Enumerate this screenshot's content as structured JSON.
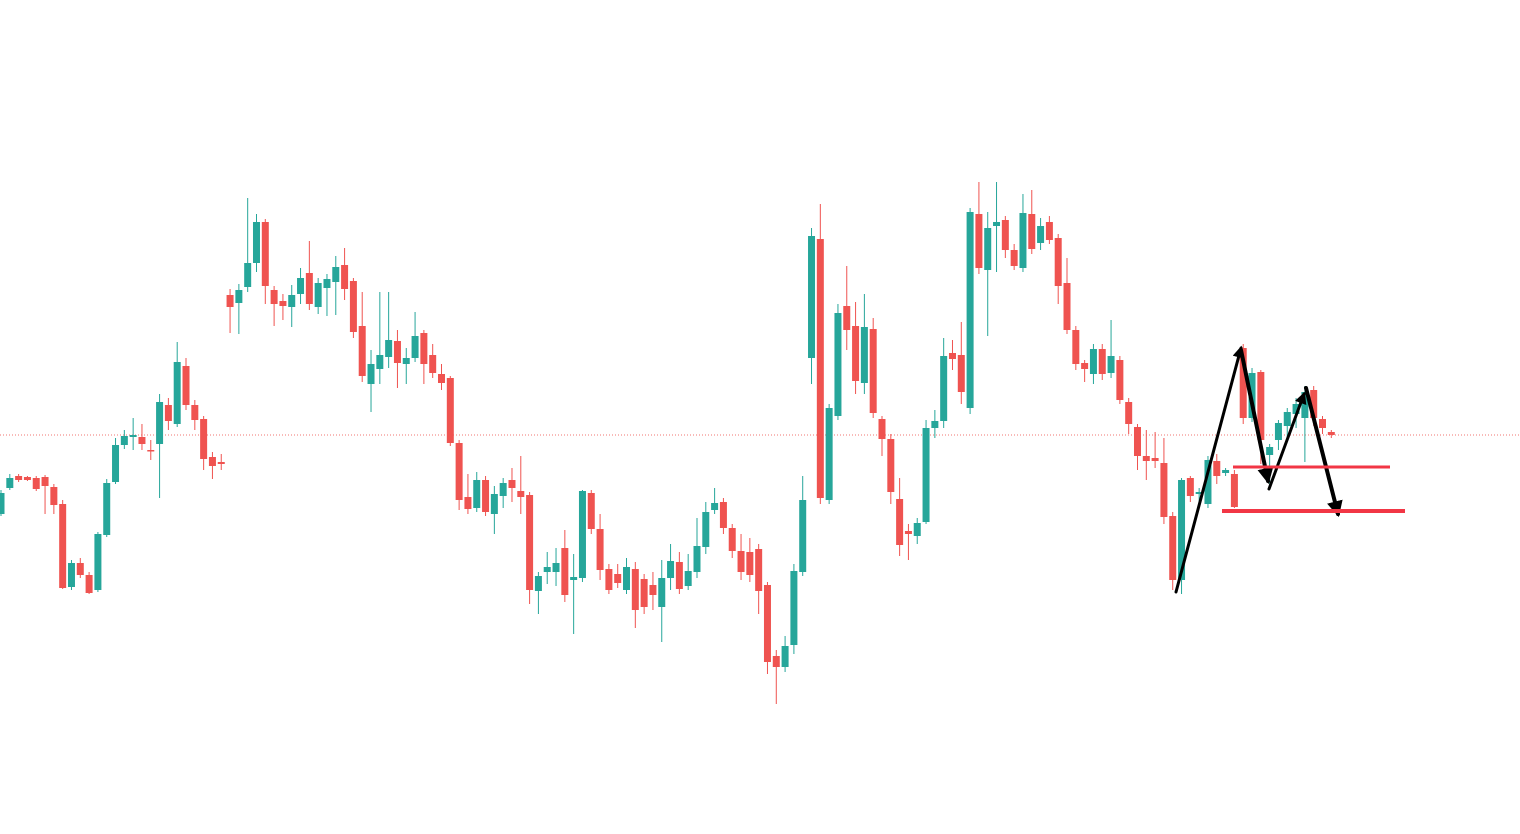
{
  "chart_data": {
    "type": "candlestick",
    "colors": {
      "up": "#26a69a",
      "down": "#ef5350"
    },
    "ylim": [
      0,
      834
    ],
    "open": [
      320,
      346,
      358,
      357,
      356,
      357,
      347,
      330,
      247,
      271,
      259,
      244,
      299,
      352,
      389,
      397,
      397,
      384,
      390,
      429,
      410,
      468,
      429,
      415,
      377,
      372,
      539,
      531,
      547,
      571,
      612,
      544,
      533,
      527,
      540,
      561,
      527,
      546,
      552,
      569,
      553,
      508,
      450,
      465,
      477,
      493,
      470,
      476,
      501,
      479,
      460,
      456,
      391,
      337,
      326,
      354,
      320,
      338,
      354,
      343,
      339,
      243,
      262,
      262,
      286,
      254,
      256,
      341,
      305,
      265,
      260,
      244,
      265,
      255,
      249,
      227,
      256,
      272,
      248,
      262,
      287,
      324,
      332,
      306,
      283,
      282,
      285,
      249,
      178,
      167,
      189,
      262,
      476,
      595,
      334,
      418,
      528,
      508,
      451,
      505,
      415,
      395,
      335,
      303,
      298,
      312,
      406,
      413,
      481,
      479,
      426,
      620,
      564,
      608,
      614,
      584,
      566,
      620,
      591,
      612,
      596,
      551,
      504,
      471,
      460,
      485,
      461,
      474,
      432,
      407,
      378,
      376,
      371,
      318,
      254,
      356,
      340,
      330,
      373,
      361,
      360,
      486,
      416,
      462,
      379,
      394,
      408,
      420,
      416,
      444,
      415,
      402
    ],
    "high": [
      344,
      360,
      360,
      358,
      358,
      359,
      350,
      334,
      274,
      276,
      262,
      302,
      355,
      396,
      404,
      416,
      410,
      394,
      440,
      436,
      492,
      476,
      434,
      418,
      382,
      380,
      545,
      550,
      636,
      620,
      615,
      548,
      540,
      549,
      566,
      593,
      556,
      560,
      578,
      586,
      556,
      542,
      484,
      542,
      542,
      504,
      486,
      522,
      504,
      490,
      470,
      458,
      394,
      360,
      362,
      358,
      348,
      356,
      366,
      378,
      342,
      262,
      282,
      286,
      304,
      280,
      344,
      344,
      320,
      270,
      270,
      276,
      272,
      260,
      262,
      274,
      290,
      282,
      280,
      316,
      332,
      346,
      336,
      310,
      300,
      296,
      290,
      252,
      184,
      198,
      270,
      358,
      606,
      630,
      430,
      530,
      568,
      532,
      540,
      516,
      418,
      400,
      356,
      310,
      316,
      414,
      424,
      496,
      494,
      512,
      626,
      652,
      622,
      652,
      618,
      590,
      640,
      644,
      616,
      618,
      600,
      576,
      508,
      474,
      490,
      490,
      514,
      478,
      436,
      410,
      404,
      402,
      396,
      322,
      356,
      358,
      346,
      378,
      380,
      366,
      364,
      490,
      466,
      464,
      390,
      414,
      426,
      436,
      448,
      448,
      418,
      404
    ],
    "low": [
      318,
      344,
      352,
      353,
      343,
      320,
      320,
      245,
      244,
      256,
      240,
      242,
      297,
      350,
      385,
      384,
      384,
      374,
      336,
      404,
      407,
      424,
      404,
      364,
      355,
      364,
      501,
      500,
      542,
      562,
      530,
      508,
      514,
      507,
      530,
      524,
      520,
      518,
      519,
      534,
      496,
      452,
      422,
      450,
      466,
      446,
      450,
      472,
      450,
      456,
      444,
      388,
      324,
      320,
      322,
      318,
      300,
      326,
      332,
      320,
      230,
      220,
      250,
      248,
      232,
      200,
      252,
      300,
      254,
      240,
      246,
      240,
      206,
      220,
      224,
      192,
      244,
      240,
      244,
      256,
      280,
      320,
      300,
      276,
      254,
      252,
      220,
      160,
      130,
      162,
      180,
      258,
      450,
      330,
      330,
      414,
      484,
      440,
      440,
      416,
      378,
      330,
      278,
      274,
      290,
      310,
      396,
      406,
      464,
      430,
      420,
      560,
      498,
      562,
      576,
      564,
      562,
      580,
      584,
      590,
      530,
      500,
      464,
      452,
      450,
      454,
      456,
      430,
      400,
      364,
      354,
      366,
      310,
      244,
      240,
      332,
      330,
      326,
      350,
      358,
      326,
      410,
      412,
      370,
      346,
      384,
      396,
      406,
      372,
      408,
      400,
      396
    ],
    "close": [
      341,
      356,
      354,
      354,
      345,
      348,
      329,
      246,
      271,
      259,
      241,
      300,
      351,
      389,
      398,
      399,
      390,
      383,
      432,
      413,
      472,
      429,
      414,
      375,
      368,
      370,
      527,
      544,
      571,
      612,
      548,
      530,
      528,
      539,
      556,
      530,
      551,
      555,
      567,
      545,
      502,
      458,
      470,
      479,
      494,
      471,
      476,
      498,
      470,
      461,
      451,
      391,
      334,
      325,
      354,
      322,
      340,
      351,
      346,
      337,
      244,
      258,
      267,
      271,
      239,
      257,
      343,
      305,
      264,
      244,
      251,
      267,
      224,
      227,
      239,
      256,
      273,
      245,
      263,
      288,
      322,
      331,
      306,
      283,
      262,
      259,
      243,
      172,
      167,
      188,
      263,
      334,
      598,
      336,
      426,
      521,
      504,
      453,
      507,
      421,
      395,
      342,
      289,
      300,
      311,
      406,
      413,
      478,
      475,
      442,
      622,
      566,
      606,
      612,
      584,
      568,
      621,
      585,
      608,
      594,
      548,
      504,
      470,
      465,
      485,
      460,
      478,
      434,
      410,
      378,
      373,
      373,
      317,
      254,
      354,
      338,
      342,
      374,
      358,
      364,
      327,
      416,
      461,
      394,
      387,
      411,
      422,
      430,
      442,
      416,
      406,
      399
    ],
    "levels": [
      {
        "value": 367,
        "color": "#f23645"
      },
      {
        "value": 323,
        "color": "#f23645"
      }
    ]
  }
}
